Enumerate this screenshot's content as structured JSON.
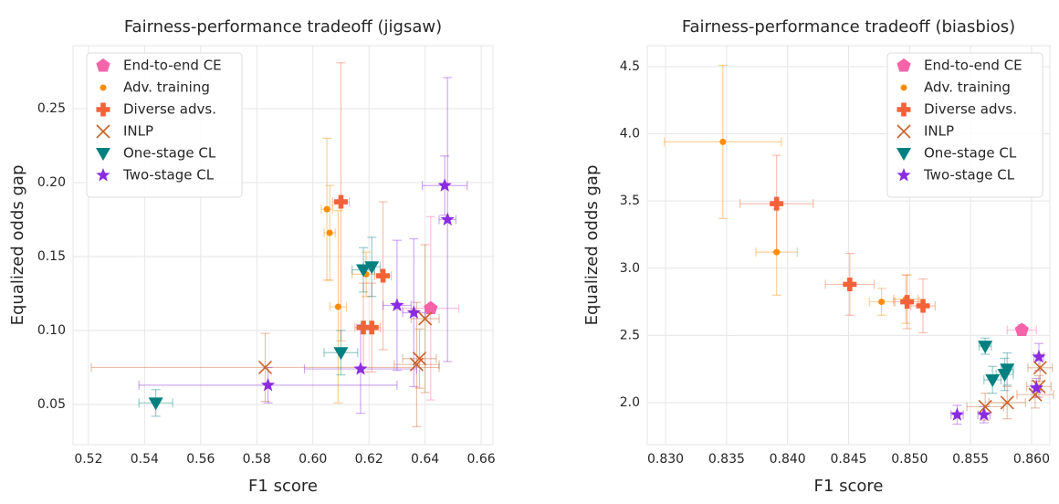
{
  "chart_data": [
    {
      "type": "scatter",
      "title": "Fairness-performance tradeoff (jigsaw)",
      "x_label": "F1 score",
      "y_label": "Equalized odds gap",
      "xlim": [
        0.5145,
        0.6642
      ],
      "ylim": [
        0.0228,
        0.2926
      ],
      "xticks": [
        0.52,
        0.54,
        0.56,
        0.58,
        {
          "value": 0.6,
          "label": "0.60"
        },
        0.62,
        0.64,
        0.66
      ],
      "yticks": [
        0.05,
        {
          "value": 0.1,
          "label": "0.10"
        },
        0.15,
        {
          "value": 0.2,
          "label": "0.20"
        },
        0.25
      ],
      "grid": true,
      "legend": "upper left",
      "series": [
        {
          "name": "End-to-end CE",
          "color": "#f564a9",
          "marker": "pentagon",
          "x": [
            0.642
          ],
          "values": [
            0.115
          ],
          "x_err": [
            0.01
          ],
          "y_err": [
            0.062
          ]
        },
        {
          "name": "Adv. training",
          "color": "#ff8c00",
          "marker": "circle",
          "x": [
            0.605,
            0.606,
            0.609,
            0.619
          ],
          "values": [
            0.182,
            0.166,
            0.116,
            0.138
          ],
          "x_err": [
            0.002,
            0.002,
            0.003,
            0.005
          ],
          "y_err": [
            0.048,
            0.032,
            0.065,
            0.015
          ]
        },
        {
          "name": "Diverse advs.",
          "color": "#f4623a",
          "marker": "plus",
          "x": [
            0.61,
            0.625,
            0.618,
            0.621
          ],
          "values": [
            0.187,
            0.137,
            0.102,
            0.102
          ],
          "x_err": [
            0.003,
            0.003,
            0.003,
            0.003
          ],
          "y_err": [
            0.094,
            0.05,
            0.03,
            0.03
          ]
        },
        {
          "name": "INLP",
          "color": "#c8622a",
          "marker": "x",
          "x": [
            0.583,
            0.638,
            0.64,
            0.637
          ],
          "values": [
            0.075,
            0.081,
            0.108,
            0.077
          ],
          "x_err": [
            0.062,
            0.006,
            0.005,
            0.008
          ],
          "y_err": [
            0.023,
            0.02,
            0.05,
            0.042
          ]
        },
        {
          "name": "One-stage CL",
          "color": "#008080",
          "marker": "triangle_down",
          "x": [
            0.544,
            0.61,
            0.618,
            0.621
          ],
          "values": [
            0.051,
            0.085,
            0.141,
            0.143
          ],
          "x_err": [
            0.006,
            0.006,
            0.004,
            0.003
          ],
          "y_err": [
            0.009,
            0.015,
            0.015,
            0.02
          ]
        },
        {
          "name": "Two-stage CL",
          "color": "#8a2be2",
          "marker": "star",
          "x": [
            0.584,
            0.617,
            0.63,
            0.636,
            0.647,
            0.648
          ],
          "values": [
            0.063,
            0.074,
            0.117,
            0.112,
            0.198,
            0.175
          ],
          "x_err": [
            0.046,
            0.02,
            0.005,
            0.004,
            0.008,
            0.003
          ],
          "y_err": [
            0.012,
            0.03,
            0.044,
            0.05,
            0.02,
            0.096
          ]
        }
      ]
    },
    {
      "type": "scatter",
      "title": "Fairness-performance tradeoff (biasbios)",
      "x_label": "F1 score",
      "y_label": "Equalized odds gap",
      "xlim": [
        0.8285,
        0.8615
      ],
      "ylim": [
        1.6875,
        4.656
      ],
      "xticks": [
        {
          "value": 0.83,
          "label": "0.830"
        },
        0.835,
        {
          "value": 0.84,
          "label": "0.840"
        },
        0.845,
        {
          "value": 0.85,
          "label": "0.850"
        },
        0.855,
        {
          "value": 0.86,
          "label": "0.860"
        }
      ],
      "yticks": [
        {
          "value": 2,
          "label": "2.0"
        },
        2.5,
        {
          "value": 3,
          "label": "3.0"
        },
        3.5,
        {
          "value": 4,
          "label": "4.0"
        },
        4.5
      ],
      "grid": true,
      "legend": "upper right",
      "series": [
        {
          "name": "End-to-end CE",
          "color": "#f564a9",
          "marker": "pentagon",
          "x": [
            0.8592
          ],
          "values": [
            2.54
          ],
          "x_err": [
            0.0012
          ],
          "y_err": [
            0.04
          ]
        },
        {
          "name": "Adv. training",
          "color": "#ff8c00",
          "marker": "circle",
          "x": [
            0.8347,
            0.8391,
            0.8477,
            0.8497
          ],
          "values": [
            3.94,
            3.12,
            2.75,
            2.77
          ],
          "x_err": [
            0.0048,
            0.0017,
            0.001,
            0.001
          ],
          "y_err": [
            0.57,
            0.32,
            0.1,
            0.18
          ]
        },
        {
          "name": "Diverse advs.",
          "color": "#f4623a",
          "marker": "plus",
          "x": [
            0.8391,
            0.8451,
            0.8498,
            0.8511
          ],
          "values": [
            3.48,
            2.88,
            2.75,
            2.72
          ],
          "x_err": [
            0.003,
            0.002,
            0.001,
            0.001
          ],
          "y_err": [
            0.36,
            0.23,
            0.2,
            0.2
          ]
        },
        {
          "name": "INLP",
          "color": "#c8622a",
          "marker": "x",
          "x": [
            0.8562,
            0.858,
            0.8603,
            0.8607,
            0.8606
          ],
          "values": [
            1.97,
            2.0,
            2.06,
            2.26,
            2.12
          ],
          "x_err": [
            0.0015,
            0.0015,
            0.0015,
            0.001,
            0.001
          ],
          "y_err": [
            0.1,
            0.12,
            0.1,
            0.1,
            0.08
          ]
        },
        {
          "name": "One-stage CL",
          "color": "#008080",
          "marker": "triangle_down",
          "x": [
            0.8562,
            0.8568,
            0.8578,
            0.858
          ],
          "values": [
            2.42,
            2.17,
            2.21,
            2.25
          ],
          "x_err": [
            0.0005,
            0.0007,
            0.0007,
            0.0005
          ],
          "y_err": [
            0.06,
            0.1,
            0.12,
            0.12
          ]
        },
        {
          "name": "Two-stage CL",
          "color": "#8a2be2",
          "marker": "star",
          "x": [
            0.8539,
            0.8561,
            0.8604,
            0.8606
          ],
          "values": [
            1.91,
            1.91,
            2.11,
            2.34
          ],
          "x_err": [
            0.0005,
            0.0005,
            0.0004,
            0.0004
          ],
          "y_err": [
            0.07,
            0.06,
            0.07,
            0.1
          ]
        }
      ]
    }
  ]
}
